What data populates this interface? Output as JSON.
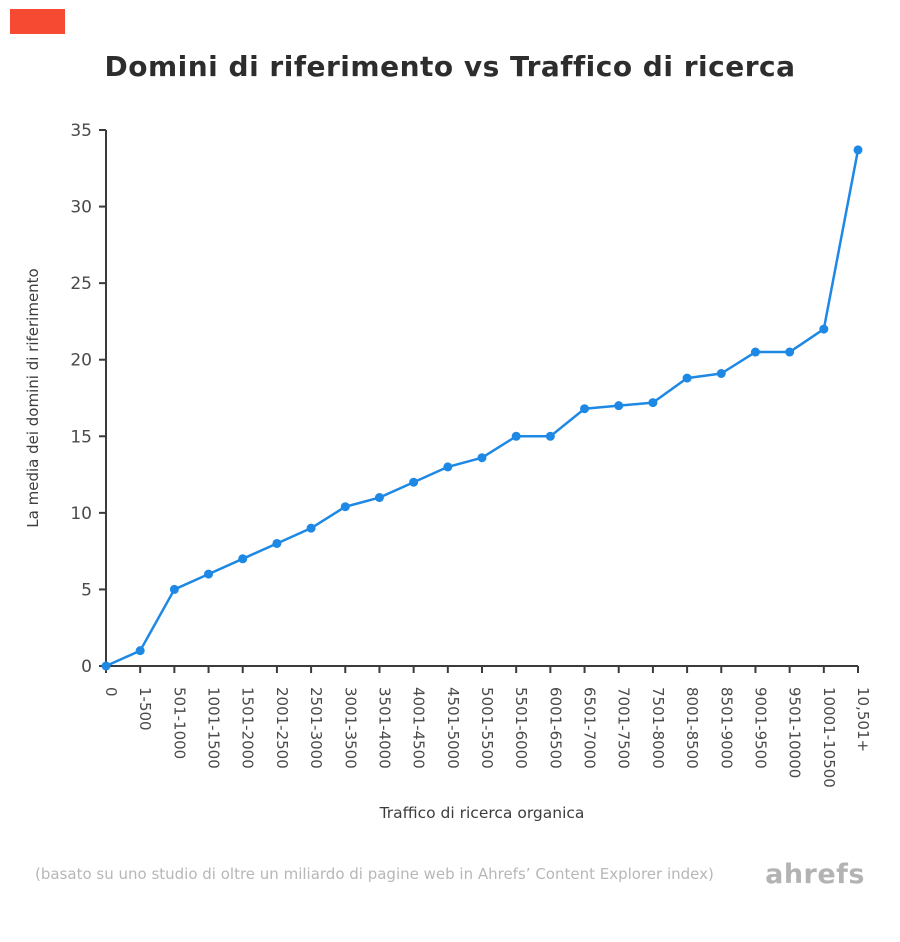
{
  "brand": {
    "color": "#f64a33"
  },
  "chart_data": {
    "type": "line",
    "title": "Domini di riferimento vs Traffico di ricerca",
    "xlabel": "Traffico di ricerca organica",
    "ylabel": "La media dei domini di riferimento",
    "ylim": [
      0,
      35
    ],
    "yticks": [
      0,
      5,
      10,
      15,
      20,
      25,
      30,
      35
    ],
    "line_color": "#1e88e5",
    "axis_color": "#3b3b3b",
    "tick_label_color": "#4a4a4a",
    "axis_title_color": "#3d3d3d",
    "legend": "none",
    "grid": false,
    "categories": [
      "0",
      "1-500",
      "501-1000",
      "1001-1500",
      "1501-2000",
      "2001-2500",
      "2501-3000",
      "3001-3500",
      "3501-4000",
      "4001-4500",
      "4501-5000",
      "5001-5500",
      "5501-6000",
      "6001-6500",
      "6501-7000",
      "7001-7500",
      "7501-8000",
      "8001-8500",
      "8501-9000",
      "9001-9500",
      "9501-10000",
      "10001-10500",
      "10,501+"
    ],
    "values": [
      0,
      1,
      5,
      6,
      7,
      8,
      9,
      10.4,
      11,
      12,
      13,
      13.6,
      15,
      15,
      16.8,
      17,
      17.2,
      18.8,
      19.1,
      20.5,
      20.5,
      22,
      33.7
    ]
  },
  "footer": {
    "note": "(basato su uno studio di oltre un miliardo di pagine web in Ahrefs’ Content Explorer index)",
    "logo": "ahrefs"
  }
}
